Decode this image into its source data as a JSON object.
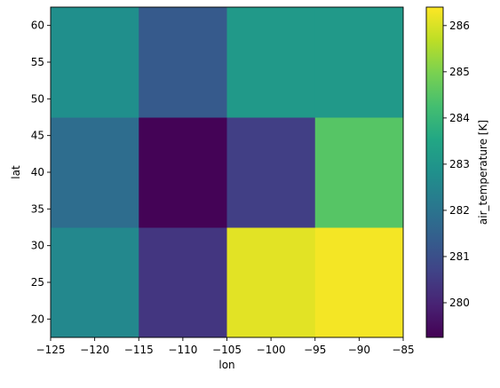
{
  "chart_data": {
    "type": "heatmap",
    "title": "",
    "xlabel": "lon",
    "ylabel": "lat",
    "colorbar_label": "air_temperature [K]",
    "colormap": "viridis",
    "x_edges": [
      -125,
      -115,
      -105,
      -95,
      -85
    ],
    "y_edges": [
      17.5,
      32.5,
      47.5,
      62.5
    ],
    "xlim": [
      -125,
      -85
    ],
    "ylim": [
      17.5,
      62.5
    ],
    "x_ticks": [
      -125,
      -120,
      -115,
      -110,
      -105,
      -100,
      -95,
      -90,
      -85
    ],
    "x_tick_labels": [
      "−125",
      "−120",
      "−115",
      "−110",
      "−105",
      "−100",
      "−95",
      "−90",
      "−85"
    ],
    "y_ticks": [
      20,
      25,
      30,
      35,
      40,
      45,
      50,
      55,
      60
    ],
    "y_tick_labels": [
      "20",
      "25",
      "30",
      "35",
      "40",
      "45",
      "50",
      "55",
      "60"
    ],
    "values": [
      [
        282.6,
        280.4,
        286.1,
        286.3
      ],
      [
        281.8,
        279.3,
        280.6,
        284.5
      ],
      [
        282.8,
        281.3,
        283.1,
        283.1
      ]
    ],
    "colorbar_range": [
      279.25,
      286.4
    ],
    "colorbar_ticks": [
      280,
      281,
      282,
      283,
      284,
      285,
      286
    ],
    "colorbar_tick_labels": [
      "280",
      "281",
      "282",
      "283",
      "284",
      "285",
      "286"
    ],
    "grid": false,
    "legend": "none"
  }
}
